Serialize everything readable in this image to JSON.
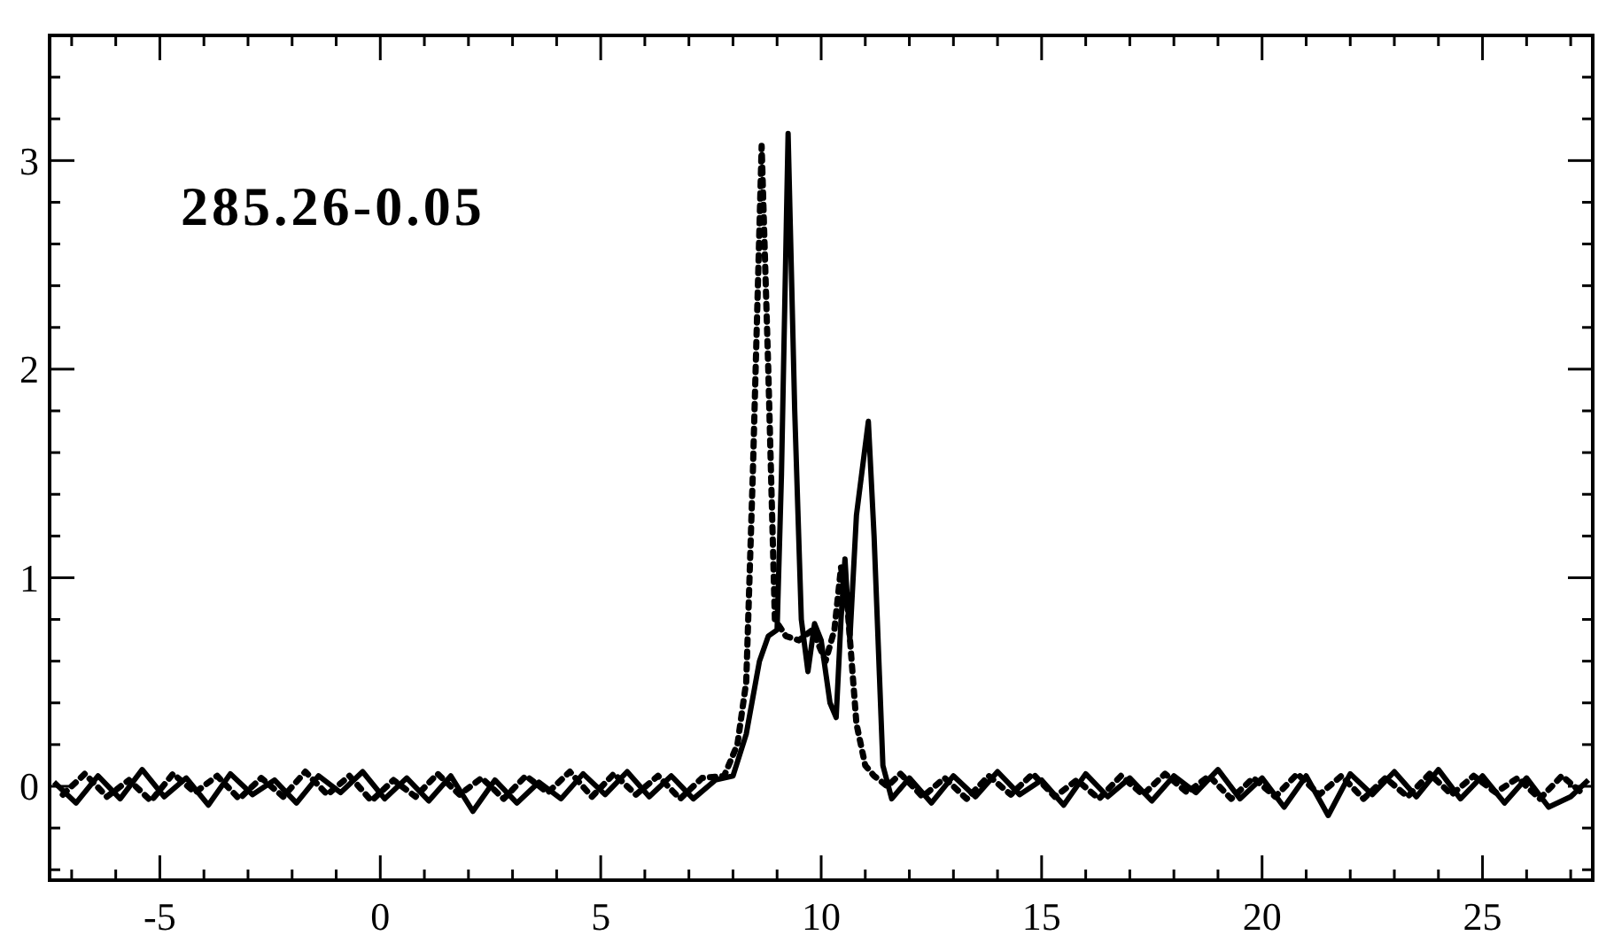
{
  "chart_data": {
    "type": "line",
    "annotations": [
      "285.26-0.05"
    ],
    "xlim": [
      -7.5,
      27.5
    ],
    "ylim": [
      -0.45,
      3.6
    ],
    "xticks": [
      {
        "value": -7,
        "label": null
      },
      {
        "value": -6,
        "label": null
      },
      -5,
      {
        "value": -4,
        "label": null
      },
      {
        "value": -3,
        "label": null
      },
      {
        "value": -2,
        "label": null
      },
      {
        "value": -1,
        "label": null
      },
      0,
      {
        "value": 1,
        "label": null
      },
      {
        "value": 2,
        "label": null
      },
      {
        "value": 3,
        "label": null
      },
      {
        "value": 4,
        "label": null
      },
      5,
      {
        "value": 6,
        "label": null
      },
      {
        "value": 7,
        "label": null
      },
      {
        "value": 8,
        "label": null
      },
      {
        "value": 9,
        "label": null
      },
      10,
      {
        "value": 11,
        "label": null
      },
      {
        "value": 12,
        "label": null
      },
      {
        "value": 13,
        "label": null
      },
      {
        "value": 14,
        "label": null
      },
      15,
      {
        "value": 16,
        "label": null
      },
      {
        "value": 17,
        "label": null
      },
      {
        "value": 18,
        "label": null
      },
      {
        "value": 19,
        "label": null
      },
      20,
      {
        "value": 21,
        "label": null
      },
      {
        "value": 22,
        "label": null
      },
      {
        "value": 23,
        "label": null
      },
      {
        "value": 24,
        "label": null
      },
      25,
      {
        "value": 26,
        "label": null
      },
      {
        "value": 27,
        "label": null
      }
    ],
    "yticks": [
      {
        "value": -0.4,
        "label": null
      },
      {
        "value": -0.2,
        "label": null
      },
      0,
      {
        "value": 0.2,
        "label": null
      },
      {
        "value": 0.4,
        "label": null
      },
      {
        "value": 0.6,
        "label": null
      },
      {
        "value": 0.8,
        "label": null
      },
      1,
      {
        "value": 1.2,
        "label": null
      },
      {
        "value": 1.4,
        "label": null
      },
      {
        "value": 1.6,
        "label": null
      },
      {
        "value": 1.8,
        "label": null
      },
      2,
      {
        "value": 2.2,
        "label": null
      },
      {
        "value": 2.4,
        "label": null
      },
      {
        "value": 2.6,
        "label": null
      },
      {
        "value": 2.8,
        "label": null
      },
      3,
      {
        "value": 3.2,
        "label": null
      },
      {
        "value": 3.4,
        "label": null
      }
    ],
    "marker": "none",
    "series": [
      {
        "color": "#000000",
        "line_style": "solid",
        "x": [
          -7.4,
          -6.9,
          -6.4,
          -5.9,
          -5.4,
          -4.9,
          -4.4,
          -3.9,
          -3.4,
          -2.9,
          -2.4,
          -1.9,
          -1.4,
          -0.9,
          -0.4,
          0.1,
          0.6,
          1.1,
          1.6,
          2.1,
          2.6,
          3.1,
          3.6,
          4.1,
          4.6,
          5.1,
          5.6,
          6.1,
          6.6,
          7.1,
          7.6,
          8.0,
          8.3,
          8.6,
          8.8,
          9.0,
          9.1,
          9.25,
          9.4,
          9.55,
          9.7,
          9.85,
          10.0,
          10.2,
          10.34,
          10.45,
          10.54,
          10.65,
          10.8,
          11.07,
          11.2,
          11.4,
          11.6,
          12.0,
          12.5,
          13.0,
          13.5,
          14.0,
          14.5,
          15.0,
          15.5,
          16.0,
          16.5,
          17.0,
          17.5,
          18.0,
          18.5,
          19.0,
          19.5,
          20.0,
          20.5,
          21.0,
          21.5,
          22.0,
          22.5,
          23.0,
          23.5,
          24.0,
          24.5,
          25.0,
          25.5,
          26.0,
          26.5,
          27.0,
          27.4
        ],
        "values": [
          0.02,
          -0.08,
          0.05,
          -0.06,
          0.08,
          -0.05,
          0.04,
          -0.09,
          0.06,
          -0.04,
          0.03,
          -0.08,
          0.05,
          -0.03,
          0.07,
          -0.06,
          0.04,
          -0.07,
          0.05,
          -0.12,
          0.03,
          -0.08,
          0.02,
          -0.06,
          0.06,
          -0.04,
          0.07,
          -0.05,
          0.05,
          -0.06,
          0.03,
          0.05,
          0.25,
          0.6,
          0.72,
          0.75,
          1.5,
          3.13,
          1.8,
          0.8,
          0.55,
          0.78,
          0.7,
          0.4,
          0.33,
          0.8,
          1.09,
          0.7,
          1.3,
          1.75,
          1.2,
          0.1,
          -0.06,
          0.04,
          -0.08,
          0.05,
          -0.05,
          0.07,
          -0.04,
          0.03,
          -0.09,
          0.06,
          -0.05,
          0.04,
          -0.07,
          0.05,
          -0.03,
          0.08,
          -0.06,
          0.04,
          -0.1,
          0.05,
          -0.14,
          0.06,
          -0.04,
          0.07,
          -0.05,
          0.08,
          -0.06,
          0.05,
          -0.08,
          0.04,
          -0.1,
          -0.05,
          0.03
        ]
      },
      {
        "color": "#000000",
        "line_style": "dotted",
        "x": [
          -7.2,
          -6.7,
          -6.2,
          -5.7,
          -5.2,
          -4.7,
          -4.2,
          -3.7,
          -3.2,
          -2.7,
          -2.2,
          -1.7,
          -1.2,
          -0.7,
          -0.2,
          0.3,
          0.8,
          1.3,
          1.8,
          2.3,
          2.8,
          3.3,
          3.8,
          4.3,
          4.8,
          5.3,
          5.8,
          6.3,
          6.8,
          7.3,
          7.8,
          8.1,
          8.3,
          8.45,
          8.65,
          8.8,
          8.95,
          9.2,
          9.5,
          9.8,
          10.1,
          10.3,
          10.45,
          10.6,
          10.8,
          11.0,
          11.2,
          11.5,
          11.8,
          12.3,
          12.8,
          13.3,
          13.8,
          14.3,
          14.8,
          15.3,
          15.8,
          16.3,
          16.8,
          17.3,
          17.8,
          18.3,
          18.8,
          19.3,
          19.8,
          20.3,
          20.8,
          21.3,
          21.8,
          22.3,
          22.8,
          23.3,
          23.8,
          24.3,
          24.8,
          25.3,
          25.8,
          26.3,
          26.8,
          27.3
        ],
        "values": [
          -0.04,
          0.06,
          -0.05,
          0.03,
          -0.07,
          0.06,
          -0.03,
          0.05,
          -0.06,
          0.04,
          -0.05,
          0.07,
          -0.04,
          0.05,
          -0.07,
          0.03,
          -0.05,
          0.06,
          -0.04,
          0.04,
          -0.06,
          0.05,
          -0.03,
          0.07,
          -0.05,
          0.06,
          -0.04,
          0.05,
          -0.06,
          0.04,
          0.05,
          0.2,
          0.5,
          1.5,
          3.07,
          2.0,
          0.8,
          0.72,
          0.7,
          0.75,
          0.6,
          0.75,
          1.05,
          0.85,
          0.3,
          0.1,
          0.05,
          0.0,
          0.06,
          -0.05,
          0.04,
          -0.06,
          0.05,
          -0.04,
          0.06,
          -0.05,
          0.03,
          -0.06,
          0.05,
          -0.04,
          0.06,
          -0.03,
          0.05,
          -0.06,
          0.04,
          -0.05,
          0.06,
          -0.04,
          0.05,
          -0.06,
          0.04,
          -0.05,
          0.06,
          -0.04,
          0.05,
          -0.03,
          0.04,
          -0.06,
          0.05,
          -0.04
        ]
      }
    ]
  }
}
